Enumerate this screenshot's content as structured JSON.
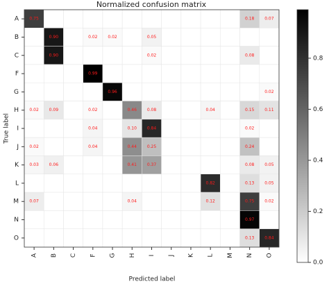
{
  "chart_data": {
    "type": "heatmap",
    "title": "Normalized confusion matrix",
    "x_label": "Predicted label",
    "y_label": "True label",
    "categories": [
      "A",
      "B",
      "C",
      "F",
      "G",
      "H",
      "I",
      "J",
      "K",
      "L",
      "M",
      "N",
      "O"
    ],
    "values": [
      [
        0.75,
        0,
        0,
        0,
        0,
        0,
        0,
        0,
        0,
        0,
        0,
        0.18,
        0.07
      ],
      [
        0,
        0.9,
        0,
        0.02,
        0.02,
        0,
        0.05,
        0,
        0,
        0,
        0,
        0,
        0
      ],
      [
        0,
        0.9,
        0,
        0,
        0,
        0,
        0.02,
        0,
        0,
        0,
        0,
        0.08,
        0
      ],
      [
        0,
        0,
        0,
        0.99,
        0,
        0,
        0,
        0,
        0,
        0,
        0,
        0,
        0
      ],
      [
        0,
        0,
        0,
        0,
        0.96,
        0,
        0,
        0,
        0,
        0,
        0,
        0,
        0.02
      ],
      [
        0.02,
        0.09,
        0,
        0.02,
        0,
        0.46,
        0.08,
        0,
        0,
        0.04,
        0,
        0.15,
        0.11
      ],
      [
        0,
        0,
        0,
        0.04,
        0,
        0.1,
        0.84,
        0,
        0,
        0,
        0,
        0.02,
        0
      ],
      [
        0.02,
        0,
        0,
        0.04,
        0,
        0.44,
        0.25,
        0,
        0,
        0,
        0,
        0.24,
        0
      ],
      [
        0.03,
        0.06,
        0,
        0,
        0,
        0.41,
        0.37,
        0,
        0,
        0,
        0,
        0.08,
        0.05
      ],
      [
        0,
        0,
        0,
        0,
        0,
        0,
        0,
        0,
        0,
        0.82,
        0,
        0.13,
        0.05
      ],
      [
        0.07,
        0,
        0,
        0,
        0,
        0.04,
        0,
        0,
        0,
        0.12,
        0,
        0.75,
        0.02
      ],
      [
        0,
        0,
        0,
        0,
        0,
        0,
        0,
        0,
        0,
        0,
        0,
        0.97,
        0
      ],
      [
        0,
        0,
        0,
        0,
        0,
        0,
        0,
        0,
        0,
        0,
        0,
        0.13,
        0.84
      ]
    ],
    "value_labels": [
      [
        "0.75",
        null,
        null,
        null,
        null,
        null,
        null,
        null,
        null,
        null,
        null,
        "0.18",
        "0.07"
      ],
      [
        null,
        "0.90",
        null,
        "0.02",
        "0.02",
        null,
        "0.05",
        null,
        null,
        null,
        null,
        null,
        null
      ],
      [
        null,
        "0.90",
        null,
        null,
        null,
        null,
        "0.02",
        null,
        null,
        null,
        null,
        "0.08",
        null
      ],
      [
        null,
        null,
        null,
        "0.99",
        null,
        null,
        null,
        null,
        null,
        null,
        null,
        null,
        null
      ],
      [
        null,
        null,
        null,
        null,
        "0.96",
        null,
        null,
        null,
        null,
        null,
        null,
        null,
        "0.02"
      ],
      [
        "0.02",
        "0.09",
        null,
        "0.02",
        null,
        "0.46",
        "0.08",
        null,
        null,
        "0.04",
        null,
        "0.15",
        "0.11"
      ],
      [
        null,
        null,
        null,
        "0.04",
        null,
        "0.10",
        "0.84",
        null,
        null,
        null,
        null,
        "0.02",
        null
      ],
      [
        "0.02",
        null,
        null,
        "0.04",
        null,
        "0.44",
        "0.25",
        null,
        null,
        null,
        null,
        "0.24",
        null
      ],
      [
        "0.03",
        "0.06",
        null,
        null,
        null,
        "0.41",
        "0.37",
        null,
        null,
        null,
        null,
        "0.08",
        "0.05"
      ],
      [
        null,
        null,
        null,
        null,
        null,
        null,
        null,
        null,
        null,
        "0.82",
        null,
        "0.13",
        "0.05"
      ],
      [
        "0.07",
        null,
        null,
        null,
        null,
        "0.04",
        null,
        null,
        null,
        "0.12",
        null,
        "0.75",
        "0.02"
      ],
      [
        null,
        null,
        null,
        null,
        null,
        null,
        null,
        null,
        null,
        null,
        null,
        "0.97",
        null
      ],
      [
        null,
        null,
        null,
        null,
        null,
        null,
        null,
        null,
        null,
        null,
        null,
        "0.13",
        "0.84"
      ]
    ],
    "zlim": [
      0,
      0.99
    ],
    "zticks": [
      {
        "value": 0,
        "label": "0.0"
      },
      0.2,
      0.4,
      0.6,
      0.8
    ]
  }
}
